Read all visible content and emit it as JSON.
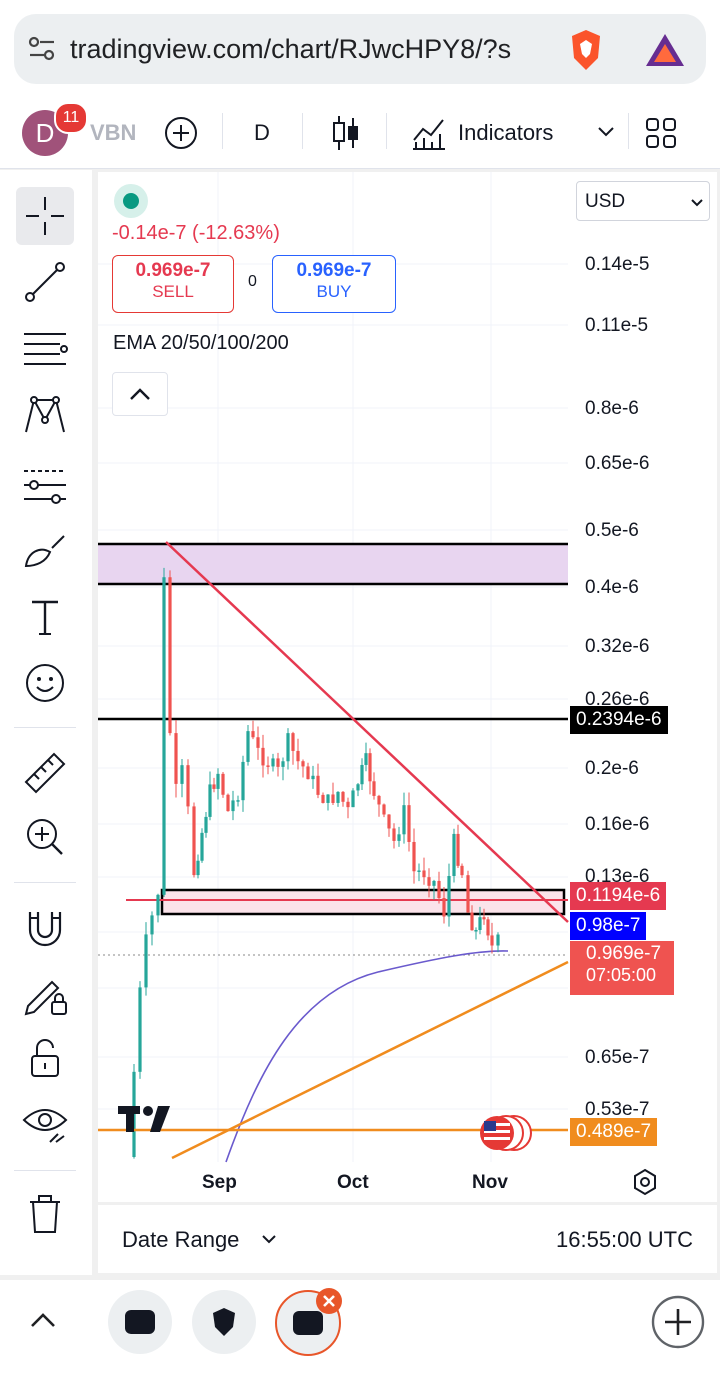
{
  "browser": {
    "url": "tradingview.com/chart/RJwcHPY8/?s"
  },
  "toolbar": {
    "avatar_letter": "D",
    "notification_count": "11",
    "symbol_partial": "VBN",
    "interval": "D",
    "indicators_label": "Indicators"
  },
  "chart": {
    "currency": "USD",
    "change_text": "-0.14e-7 (-12.63%)",
    "sell_price": "0.969e-7",
    "sell_label": "SELL",
    "spread": "0",
    "buy_price": "0.969e-7",
    "buy_label": "BUY",
    "indicator_legend": "EMA 20/50/100/200",
    "price_scale": [
      "0.14e-5",
      "0.11e-5",
      "0.8e-6",
      "0.65e-6",
      "0.5e-6",
      "0.4e-6",
      "0.32e-6",
      "0.26e-6",
      "0.2e-6",
      "0.16e-6",
      "0.13e-6",
      "0.65e-7",
      "0.53e-7"
    ],
    "price_tags": {
      "hline_upper": "0.2394e-6",
      "hline_red": "0.1194e-6",
      "blue_level": "0.98e-7",
      "last_price": "0.969e-7",
      "countdown": "07:05:00",
      "orange_level": "0.489e-7"
    },
    "time_axis": [
      "Sep",
      "Oct",
      "Nov"
    ],
    "colors": {
      "up": "#26a69a",
      "down": "#ef5350",
      "trend_down": "#e53950",
      "trend_up": "#f08c1e",
      "zone_fill": "#e8d5f0",
      "ema_line": "#6a5acd"
    }
  },
  "bottom": {
    "date_range_label": "Date Range",
    "clock": "16:55:00 UTC"
  }
}
